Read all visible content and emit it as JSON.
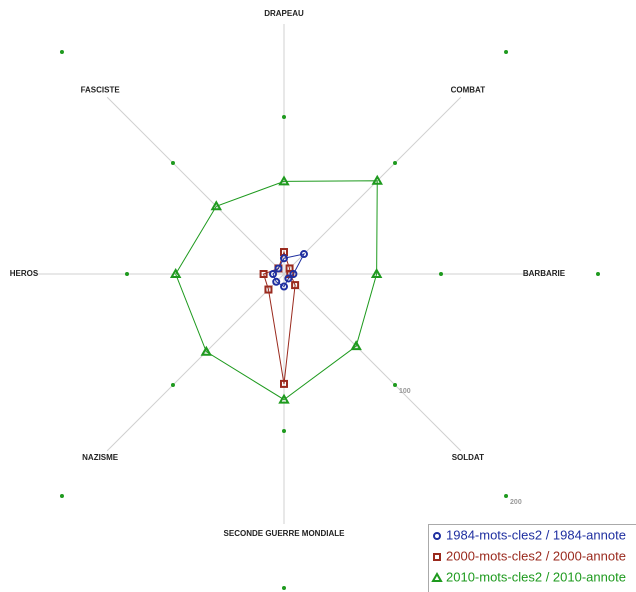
{
  "chart_data": {
    "type": "radar",
    "categories": [
      "DRAPEAU",
      "COMBAT",
      "BARBARIE",
      "SOLDAT",
      "SECONDE GUERRE MONDIALE",
      "NAZISME",
      "HEROS",
      "FASCISTE"
    ],
    "rlim": [
      0,
      200
    ],
    "rticks": [
      100,
      200
    ],
    "series": [
      {
        "name": "1984-mots-cles2 / 1984-annote",
        "color": "#1f2fa0",
        "marker": "circle",
        "values": [
          10,
          18,
          6,
          4,
          8,
          7,
          7,
          5
        ]
      },
      {
        "name": "2000-mots-cles2 / 2000-annote",
        "color": "#9a2a1e",
        "marker": "square",
        "values": [
          14,
          5,
          4,
          10,
          70,
          14,
          13,
          5
        ]
      },
      {
        "name": "2010-mots-cles2 / 2010-annote",
        "color": "#1e9a1e",
        "marker": "triangle",
        "values": [
          59,
          84,
          59,
          65,
          80,
          70,
          69,
          61
        ]
      }
    ]
  }
}
